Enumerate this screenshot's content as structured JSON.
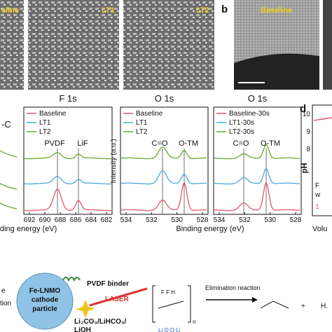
{
  "panel_a": {
    "labels": [
      "eline",
      "LT1",
      "LT2"
    ]
  },
  "panel_b": {
    "letter": "b",
    "label": "Baseline"
  },
  "panel_c": {
    "left_fragment": "-C",
    "left_xlabel": "ding energy (eV)",
    "ylabel": "Intensity (a.u.)",
    "xlabel": "Binding energy (eV)",
    "plots": [
      {
        "title": "F 1s",
        "legend": [
          "Baseline",
          "LT1",
          "LT2"
        ],
        "annotations": [
          "PVDF",
          "LiF"
        ],
        "xticks": [
          "692",
          "690",
          "688",
          "686",
          "684",
          "682"
        ]
      },
      {
        "title": "O 1s",
        "legend": [
          "Baseline",
          "LT1",
          "LT2"
        ],
        "annotations": [
          "C=O",
          "O-TM"
        ],
        "xticks": [
          "534",
          "532",
          "530",
          "528"
        ]
      },
      {
        "title": "O 1s",
        "legend": [
          "Baseline-30s",
          "LT1-30s",
          "LT2-30s"
        ],
        "annotations": [
          "C=O",
          "O-TM"
        ],
        "xticks": [
          "534",
          "532",
          "530",
          "528"
        ]
      }
    ]
  },
  "panel_d": {
    "letter": "d",
    "ylabel": "pH",
    "yticks": [
      "10",
      "9",
      "8"
    ],
    "fragments": [
      "F",
      "w",
      "1"
    ],
    "xlabel": "Volu"
  },
  "schematic": {
    "left_fragments": [
      "e",
      "tion"
    ],
    "particle": [
      "Fe-LNMO",
      "cathode",
      "particle"
    ],
    "binder": "PVDF binder",
    "laser": "LASER",
    "products": [
      "Li₂CO₃/LiHCO₃/",
      "LiOH"
    ],
    "reaction": "Elimination reaction",
    "subscript": "n",
    "tail": "H."
  }
}
